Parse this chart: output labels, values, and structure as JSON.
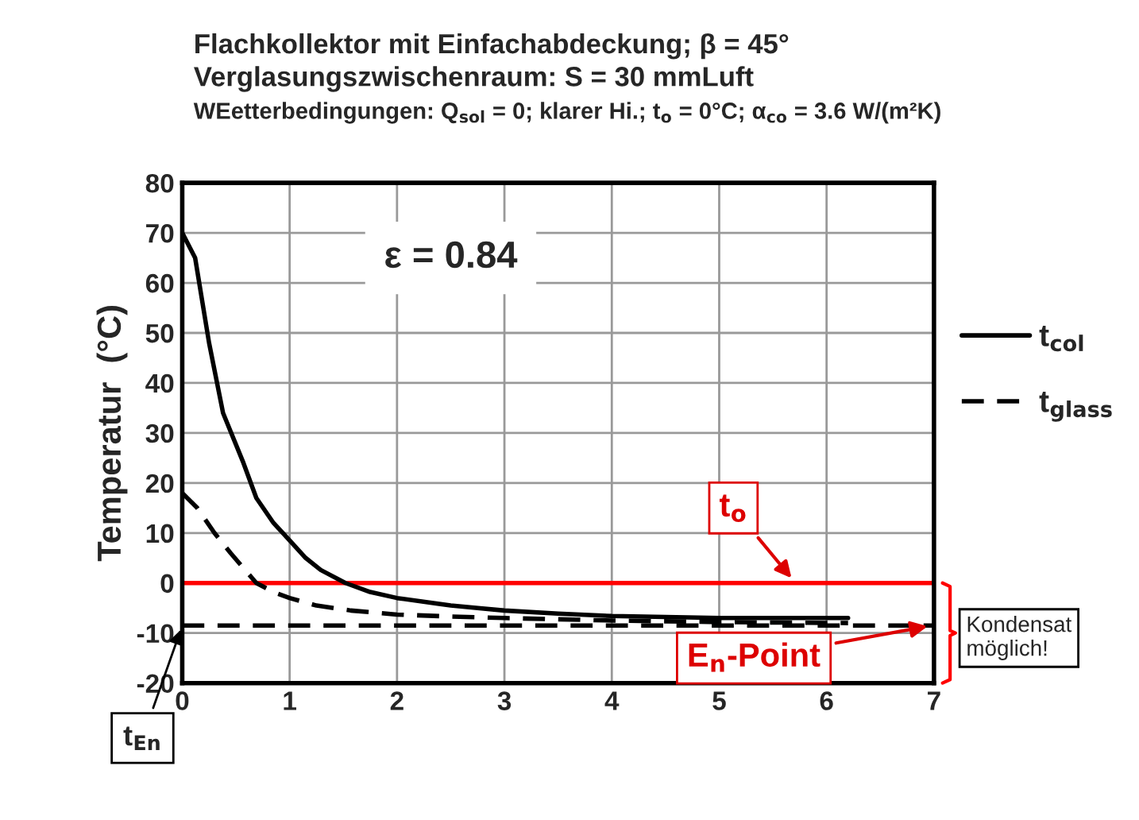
{
  "chart_data": {
    "type": "line",
    "title": "Flachkollektor mit Einfachabdeckung; β = 45°",
    "subtitle": "Verglasungszwischenraum: S = 30 mmLuft",
    "ylabel": "Temperatur  (°C)",
    "annotations": [
      "WEetterbedingungen: Q$_{sol}$ = 0; klarer Hi.; t$_{o}$ = 0°C; α$_{co}$ = 3.6 W/(m²K)",
      "ε = 0.84",
      "Kondensat\nmöglich!",
      {
        "text": "t$_{En}$",
        "x": 0,
        "y": -8.5
      }
    ],
    "series": [
      {
        "name": "t$_{col}$",
        "color": "#000000",
        "line_style": "solid",
        "x": [
          0,
          0.12,
          0.25,
          0.38,
          0.57,
          0.69,
          0.85,
          1,
          1.15,
          1.29,
          1.52,
          1.75,
          2,
          2.5,
          3,
          3.5,
          4,
          5,
          6.2
        ],
        "values": [
          70,
          65,
          48,
          34,
          24,
          17,
          12,
          8.5,
          5,
          2.6,
          0,
          -1.8,
          -3,
          -4.5,
          -5.5,
          -6.1,
          -6.6,
          -7,
          -7
        ]
      },
      {
        "name": "t$_{glass}$",
        "color": "#000000",
        "line_style": "dashed",
        "x": [
          0,
          0.14,
          0.3,
          0.45,
          0.57,
          0.69,
          0.85,
          1,
          1.25,
          1.57,
          2,
          2.5,
          3,
          4,
          5,
          6.2
        ],
        "values": [
          18,
          15,
          10,
          6,
          3,
          0,
          -1.8,
          -3,
          -4.5,
          -5.5,
          -6.3,
          -6.7,
          -7,
          -7.5,
          -7.8,
          -8
        ]
      }
    ],
    "ref_lines": [
      {
        "axis": "y",
        "value": 0,
        "label": "t$_{o}$",
        "color": "#ff0000",
        "line_style": "solid"
      },
      {
        "axis": "y",
        "value": -8.5,
        "label": "E$_{n}$-Point",
        "color": "#000000",
        "line_style": "dashed"
      }
    ],
    "xlim": [
      0,
      7
    ],
    "ylim": [
      -20,
      80
    ],
    "xticks": [
      0,
      1,
      2,
      3,
      4,
      5,
      6,
      7
    ],
    "yticks": [
      -20,
      -10,
      0,
      10,
      20,
      30,
      40,
      50,
      60,
      70,
      80
    ],
    "grid": true,
    "legend": "right"
  }
}
